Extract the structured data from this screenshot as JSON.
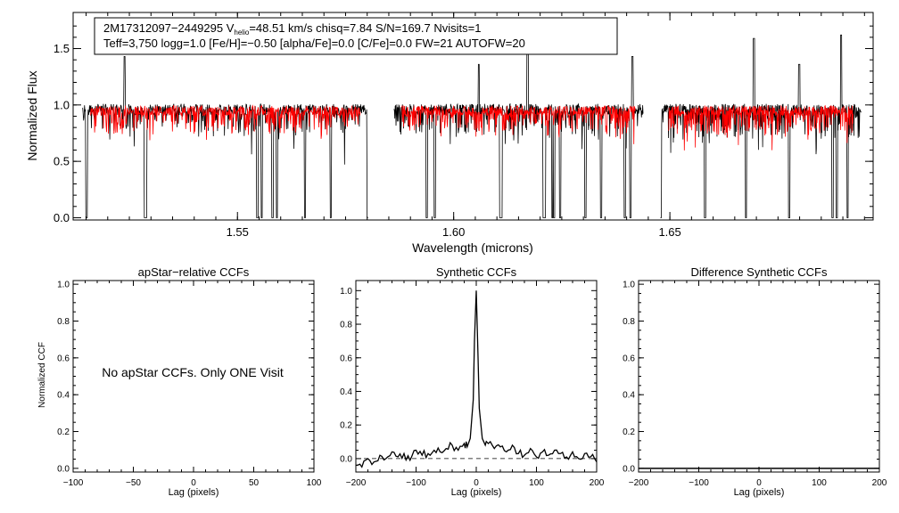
{
  "colors": {
    "observed": "#000000",
    "model": "#ff0000",
    "axis": "#000000",
    "dashed": "#000000"
  },
  "chart_data": [
    {
      "id": "spectrum",
      "type": "line",
      "xlabel": "Wavelength (microns)",
      "ylabel": "Normalized Flux",
      "xlim": [
        1.512,
        1.697
      ],
      "ylim": [
        -0.02,
        1.82
      ],
      "xticks": [
        1.55,
        1.6,
        1.65
      ],
      "xtick_labels": [
        "1.55",
        "1.60",
        "1.65"
      ],
      "yticks": [
        0.0,
        0.5,
        1.0,
        1.5
      ],
      "ytick_labels": [
        "0.0",
        "0.5",
        "1.0",
        "1.5"
      ],
      "annotation": {
        "star": "2M17312097−2449295",
        "v_symbol": "V",
        "v_sub": "helio",
        "v_text": "=48.51 km/s  chisq=7.84  S/N=169.7  Nvisits=1",
        "line2": "Teff=3,750 logg=1.0 [Fe/H]=−0.50 [alpha/Fe]=0.0 [C/Fe]=0.0 FW=21 AUTOFW=20"
      },
      "chips": [
        [
          1.5142,
          1.5802
        ],
        [
          1.5862,
          1.6438
        ],
        [
          1.6478,
          1.6942
        ]
      ],
      "series": [
        {
          "name": "observed",
          "continuum": 0.96,
          "noise": 0.05
        },
        {
          "name": "model",
          "continuum": 0.95,
          "noise": 0.045
        }
      ],
      "deep_lines": [
        1.5151,
        1.5286,
        1.5289,
        1.5546,
        1.5556,
        1.5581,
        1.5591,
        1.5656,
        1.5716,
        1.5801,
        1.5938,
        1.5956,
        1.6108,
        1.6111,
        1.6208,
        1.6211,
        1.6228,
        1.6232,
        1.6246,
        1.6305,
        1.6341,
        1.6396,
        1.6409,
        1.6479,
        1.6581,
        1.6676,
        1.6776,
        1.6876,
        1.6886,
        1.6911
      ],
      "spikes": [
        [
          1.5239,
          1.43
        ],
        [
          1.6058,
          1.36
        ],
        [
          1.6171,
          1.63
        ],
        [
          1.6413,
          1.43
        ],
        [
          1.6694,
          1.59
        ],
        [
          1.6799,
          1.36
        ],
        [
          1.6896,
          1.62
        ]
      ]
    },
    {
      "id": "apstar_ccf",
      "type": "line",
      "title": "apStar−relative CCFs",
      "xlabel": "Lag (pixels)",
      "ylabel": "Normalized CCF",
      "xlim": [
        -100,
        100
      ],
      "ylim": [
        -0.02,
        1.02
      ],
      "xticks": [
        -100,
        -50,
        0,
        50,
        100
      ],
      "xtick_labels": [
        "−100",
        "−50",
        "0",
        "50",
        "100"
      ],
      "yticks": [
        0.0,
        0.2,
        0.4,
        0.6,
        0.8,
        1.0
      ],
      "ytick_labels": [
        "0.0",
        "0.2",
        "0.4",
        "0.6",
        "0.8",
        "1.0"
      ],
      "message": "No apStar CCFs.  Only ONE Visit",
      "series": []
    },
    {
      "id": "synthetic_ccf",
      "type": "line",
      "title": "Synthetic CCFs",
      "xlabel": "Lag (pixels)",
      "ylabel": "",
      "xlim": [
        -200,
        200
      ],
      "ylim": [
        -0.08,
        1.06
      ],
      "xticks": [
        -200,
        -100,
        0,
        100,
        200
      ],
      "xtick_labels": [
        "−200",
        "−100",
        "0",
        "100",
        "200"
      ],
      "yticks": [
        0.0,
        0.2,
        0.4,
        0.6,
        0.8,
        1.0
      ],
      "ytick_labels": [
        "0.0",
        "0.2",
        "0.4",
        "0.6",
        "0.8",
        "1.0"
      ],
      "baseline": 0.0,
      "series": [
        {
          "name": "ccf",
          "x": [
            -200,
            -190,
            -180,
            -170,
            -160,
            -150,
            -140,
            -130,
            -120,
            -110,
            -100,
            -90,
            -80,
            -70,
            -60,
            -50,
            -40,
            -30,
            -20,
            -15,
            -10,
            -5,
            -3,
            0,
            3,
            5,
            10,
            15,
            20,
            30,
            40,
            50,
            60,
            70,
            80,
            90,
            100,
            110,
            120,
            130,
            140,
            150,
            160,
            170,
            180,
            190,
            200
          ],
          "y": [
            -0.04,
            -0.05,
            0.0,
            -0.02,
            0.02,
            0.0,
            0.04,
            0.01,
            0.03,
            -0.01,
            0.05,
            0.02,
            0.03,
            0.05,
            0.04,
            0.06,
            0.08,
            0.05,
            0.09,
            0.07,
            0.12,
            0.35,
            0.7,
            1.0,
            0.6,
            0.3,
            0.12,
            0.08,
            0.09,
            0.06,
            0.07,
            0.04,
            0.08,
            0.03,
            0.02,
            0.06,
            0.01,
            0.04,
            0.02,
            0.05,
            0.03,
            0.01,
            0.04,
            0.0,
            0.03,
            0.01,
            -0.02
          ]
        }
      ]
    },
    {
      "id": "difference_ccf",
      "type": "line",
      "title": "Difference Synthetic CCFs",
      "xlabel": "Lag (pixels)",
      "ylabel": "",
      "xlim": [
        -200,
        200
      ],
      "ylim": [
        -0.02,
        1.02
      ],
      "xticks": [
        -200,
        -100,
        0,
        100,
        200
      ],
      "xtick_labels": [
        "−200",
        "−100",
        "0",
        "100",
        "200"
      ],
      "yticks": [
        0.0,
        0.2,
        0.4,
        0.6,
        0.8,
        1.0
      ],
      "ytick_labels": [
        "0.0",
        "0.2",
        "0.4",
        "0.6",
        "0.8",
        "1.0"
      ],
      "series": [
        {
          "name": "difference",
          "x": [
            -200,
            200
          ],
          "y": [
            0.0,
            0.0
          ]
        }
      ]
    }
  ]
}
